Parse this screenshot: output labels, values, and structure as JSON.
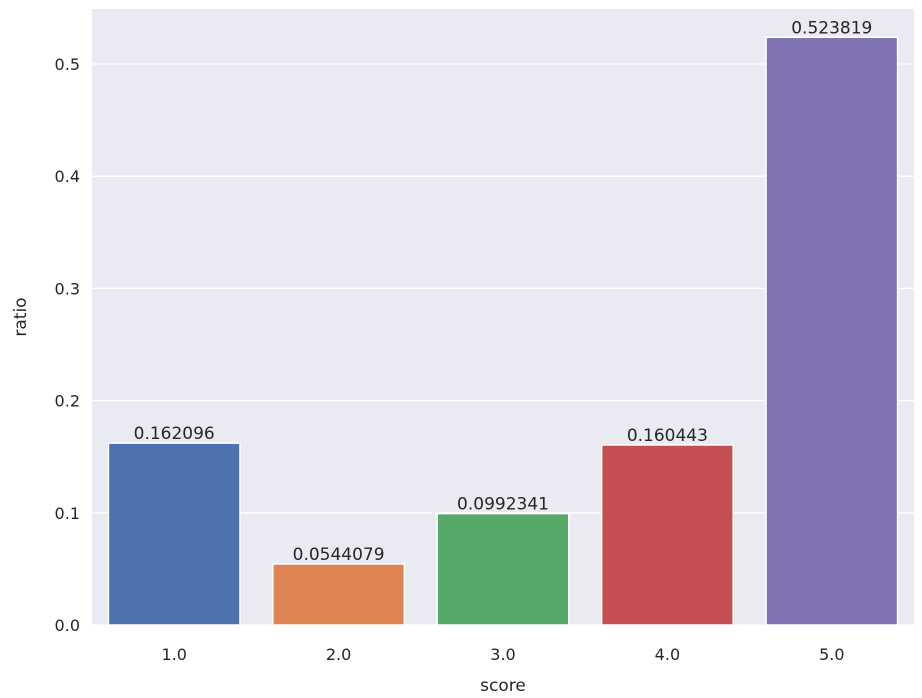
{
  "chart_data": {
    "type": "bar",
    "title": "",
    "xlabel": "score",
    "ylabel": "ratio",
    "categories": [
      "1.0",
      "2.0",
      "3.0",
      "4.0",
      "5.0"
    ],
    "values": [
      0.162096,
      0.0544079,
      0.0992341,
      0.160443,
      0.523819
    ],
    "value_labels": [
      "0.162096",
      "0.0544079",
      "0.0992341",
      "0.160443",
      "0.523819"
    ],
    "colors": [
      "#4c72b0",
      "#dd8452",
      "#55a868",
      "#c44e52",
      "#8172b3"
    ],
    "ylim": [
      0,
      0.55
    ],
    "yticks": [
      0.0,
      0.1,
      0.2,
      0.3,
      0.4,
      0.5
    ],
    "ytick_labels": [
      "0.0",
      "0.1",
      "0.2",
      "0.3",
      "0.4",
      "0.5"
    ],
    "grid": true,
    "background": "#eaeaf2",
    "grid_color": "#ffffff"
  }
}
